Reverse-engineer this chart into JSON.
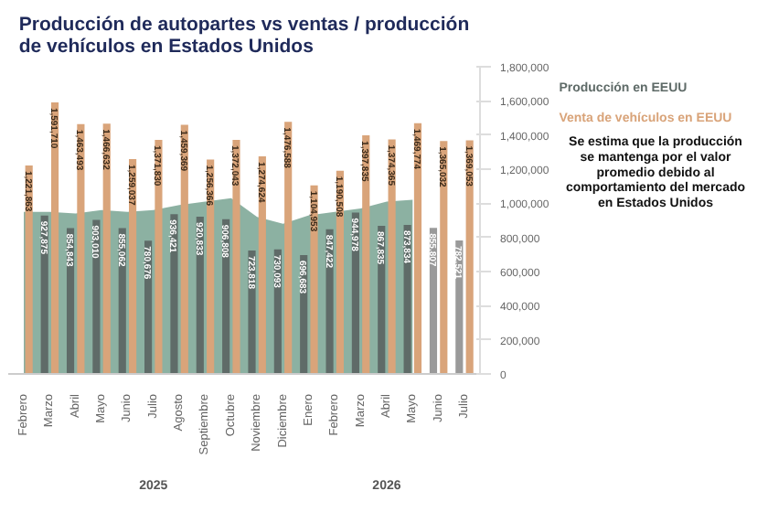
{
  "chart_data": {
    "type": "bar",
    "title": "Producción de autopartes vs ventas / producción\nde vehículos en Estados Unidos",
    "categories": [
      "Febrero",
      "Marzo",
      "Abril",
      "Mayo",
      "Junio",
      "Julio",
      "Agosto",
      "Septiembre",
      "Octubre",
      "Noviembre",
      "Diciembre",
      "Enero",
      "Febrero",
      "Marzo",
      "Abril",
      "Mayo",
      "Junio",
      "Julio"
    ],
    "series": [
      {
        "type": "area",
        "color": "#7fa898",
        "values": [
          950000,
          950000,
          940000,
          960000,
          950000,
          960000,
          990000,
          1010000,
          1030000,
          920000,
          880000,
          930000,
          950000,
          970000,
          1010000,
          1020000,
          null,
          null
        ]
      },
      {
        "type": "bar",
        "name": "Producción en EEUU",
        "value_labels": [
          null,
          "927,875",
          "854,843",
          "903,010",
          "855,062",
          "780,676",
          "936,421",
          "920,833",
          "906,808",
          "723,818",
          "730,093",
          "696,683",
          "847,422",
          "944,978",
          "867,835",
          "873,834",
          "855,807",
          "782,521"
        ],
        "color": "#5f6b68",
        "colors": [
          "#5f6b68",
          "#5f6b68",
          "#5f6b68",
          "#5f6b68",
          "#5f6b68",
          "#5f6b68",
          "#5f6b68",
          "#5f6b68",
          "#5f6b68",
          "#5f6b68",
          "#5f6b68",
          "#5f6b68",
          "#5f6b68",
          "#5f6b68",
          "#5f6b68",
          "#5f6b68",
          "#9a9a9a",
          "#9a9a9a"
        ],
        "values": [
          null,
          927875,
          854843,
          903010,
          855062,
          780676,
          936421,
          920833,
          906808,
          723818,
          730093,
          696683,
          847422,
          944978,
          867835,
          873834,
          855807,
          782521
        ]
      },
      {
        "type": "bar",
        "name": "Venta de vehículos en EEUU",
        "value_labels": [
          "1,221,863",
          "1,591,710",
          "1,463,493",
          "1,466,632",
          "1,259,037",
          "1,371,830",
          "1,459,369",
          "1,256,366",
          "1,372,043",
          "1,274,624",
          "1,476,588",
          "1,104,953",
          "1,190,508",
          "1,397,835",
          "1,374,365",
          "1,469,774",
          "1,365,032",
          "1,369,053"
        ],
        "color": "#d9a47a",
        "values": [
          1221863,
          1591710,
          1463493,
          1466632,
          1259037,
          1371830,
          1459369,
          1256366,
          1372043,
          1274624,
          1476588,
          1104953,
          1190508,
          1397835,
          1374365,
          1469774,
          1365032,
          1369053
        ]
      }
    ],
    "ylim": [
      0,
      1800000
    ],
    "yticks": [
      {
        "value": 0,
        "label": "0"
      },
      {
        "value": 200000,
        "label": "200,000"
      },
      {
        "value": 400000,
        "label": "400,000"
      },
      {
        "value": 600000,
        "label": "600,000"
      },
      {
        "value": 800000,
        "label": "800,000"
      },
      {
        "value": 1000000,
        "label": "1,000,000"
      },
      {
        "value": 1200000,
        "label": "1,200,000"
      },
      {
        "value": 1400000,
        "label": "1,400,000"
      },
      {
        "value": 1600000,
        "label": "1,600,000"
      },
      {
        "value": 1800000,
        "label": "1,800,000"
      }
    ],
    "grid": false,
    "annotations": [
      "2025",
      "2026",
      "Se estima que la producción se mantenga por el valor promedio debido al comportamiento del mercado en Estados Unidos"
    ]
  }
}
